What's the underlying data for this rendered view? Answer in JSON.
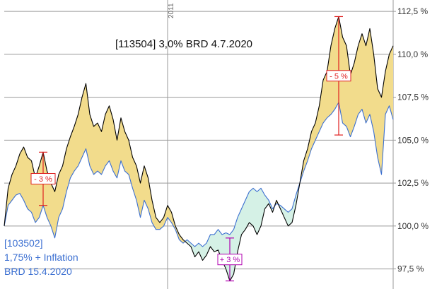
{
  "chart_data": {
    "type": "line",
    "title": "[113504] 3,0% BRD 4.7.2020",
    "legend_lines": [
      "[103502]",
      "1,75% + Inflation",
      "BRD 15.4.2020"
    ],
    "year_marker": "2011",
    "y_axis": {
      "ylim": [
        96.7,
        113.0
      ],
      "ticks": [
        97.5,
        100.0,
        102.5,
        105.0,
        107.5,
        110.0,
        112.5
      ],
      "tick_labels": [
        "97,5 %",
        "100,0 %",
        "102,5 %",
        "105,0 %",
        "107,5 %",
        "110,0 %",
        "112,5 %"
      ],
      "side": "right",
      "grid": true
    },
    "x_axis": {
      "index_range": [
        0,
        100
      ],
      "year_marker_at": 42,
      "tick_labels_visible": false
    },
    "colors": {
      "nominal": "#000000",
      "inflation": "#3b6fd1",
      "fill_nominal_above": "#f2dc8c",
      "fill_inflation_above": "#d5f1e6",
      "annotation_red": "#e02020",
      "annotation_magenta": "#b000b0",
      "grid": "#9a9a9a",
      "legend_text": "#3b6fd1"
    },
    "annotations": [
      {
        "label": "- 3 %",
        "x": 10,
        "y_top": 104.3,
        "y_bottom": 101.2,
        "color": "#e02020"
      },
      {
        "label": "+ 3 %",
        "x": 58,
        "y_top": 99.3,
        "y_bottom": 96.8,
        "color": "#b000b0"
      },
      {
        "label": "- 5 %",
        "x": 86,
        "y_top": 112.2,
        "y_bottom": 105.3,
        "color": "#e02020"
      }
    ],
    "series": [
      {
        "name": "[113504] 3,0% BRD 4.7.2020",
        "x": [
          0,
          1,
          2,
          3,
          4,
          5,
          6,
          7,
          8,
          9,
          10,
          11,
          12,
          13,
          14,
          15,
          16,
          17,
          18,
          19,
          20,
          21,
          22,
          23,
          24,
          25,
          26,
          27,
          28,
          29,
          30,
          31,
          32,
          33,
          34,
          35,
          36,
          37,
          38,
          39,
          40,
          41,
          42,
          43,
          44,
          45,
          46,
          47,
          48,
          49,
          50,
          51,
          52,
          53,
          54,
          55,
          56,
          57,
          58,
          59,
          60,
          61,
          62,
          63,
          64,
          65,
          66,
          67,
          68,
          69,
          70,
          71,
          72,
          73,
          74,
          75,
          76,
          77,
          78,
          79,
          80,
          81,
          82,
          83,
          84,
          85,
          86,
          87,
          88,
          89,
          90,
          91,
          92,
          93,
          94,
          95,
          96,
          97,
          98,
          99,
          100
        ],
        "values": [
          100.0,
          102.2,
          103.0,
          103.5,
          104.2,
          104.6,
          104.0,
          103.8,
          102.8,
          103.5,
          104.3,
          103.2,
          102.5,
          102.0,
          103.0,
          103.5,
          104.5,
          105.2,
          105.8,
          106.5,
          107.5,
          108.3,
          106.5,
          105.8,
          106.0,
          105.5,
          106.5,
          107.0,
          106.2,
          105.0,
          106.3,
          105.5,
          105.0,
          104.0,
          103.5,
          102.5,
          103.5,
          102.8,
          101.5,
          100.5,
          100.2,
          100.5,
          101.2,
          100.8,
          100.0,
          99.5,
          99.2,
          99.0,
          98.8,
          98.2,
          98.5,
          98.0,
          98.3,
          98.8,
          98.5,
          98.6,
          98.0,
          97.5,
          96.8,
          97.2,
          98.5,
          99.5,
          99.8,
          100.2,
          100.0,
          99.5,
          100.0,
          101.0,
          101.3,
          100.8,
          101.5,
          101.0,
          100.5,
          100.0,
          100.2,
          101.2,
          102.5,
          103.8,
          104.5,
          105.5,
          106.0,
          107.0,
          108.5,
          109.0,
          110.5,
          111.5,
          112.2,
          111.0,
          110.5,
          108.8,
          109.5,
          110.5,
          111.2,
          110.5,
          111.5,
          110.0,
          108.0,
          107.5,
          109.0,
          110.0,
          110.5
        ]
      },
      {
        "name": "[103502] 1,75% + Inflation BRD 15.4.2020",
        "x": [
          0,
          1,
          2,
          3,
          4,
          5,
          6,
          7,
          8,
          9,
          10,
          11,
          12,
          13,
          14,
          15,
          16,
          17,
          18,
          19,
          20,
          21,
          22,
          23,
          24,
          25,
          26,
          27,
          28,
          29,
          30,
          31,
          32,
          33,
          34,
          35,
          36,
          37,
          38,
          39,
          40,
          41,
          42,
          43,
          44,
          45,
          46,
          47,
          48,
          49,
          50,
          51,
          52,
          53,
          54,
          55,
          56,
          57,
          58,
          59,
          60,
          61,
          62,
          63,
          64,
          65,
          66,
          67,
          68,
          69,
          70,
          71,
          72,
          73,
          74,
          75,
          76,
          77,
          78,
          79,
          80,
          81,
          82,
          83,
          84,
          85,
          86,
          87,
          88,
          89,
          90,
          91,
          92,
          93,
          94,
          95,
          96,
          97,
          98,
          99,
          100
        ],
        "values": [
          100.0,
          101.2,
          101.5,
          101.8,
          101.9,
          101.5,
          101.0,
          100.8,
          100.2,
          100.5,
          101.2,
          100.5,
          100.0,
          99.3,
          100.5,
          101.0,
          102.0,
          102.8,
          103.2,
          103.5,
          104.0,
          104.5,
          103.5,
          103.0,
          103.2,
          103.0,
          103.5,
          103.8,
          103.2,
          102.8,
          103.8,
          103.2,
          103.0,
          102.2,
          101.5,
          100.5,
          101.5,
          101.0,
          100.2,
          99.8,
          99.8,
          100.0,
          100.5,
          100.2,
          99.8,
          99.2,
          99.0,
          99.2,
          99.0,
          98.8,
          99.0,
          98.8,
          99.0,
          99.5,
          99.5,
          99.8,
          99.5,
          99.6,
          99.5,
          99.8,
          100.5,
          101.0,
          101.5,
          102.0,
          102.2,
          102.0,
          102.2,
          101.8,
          101.5,
          101.0,
          101.3,
          101.2,
          101.0,
          100.8,
          101.0,
          101.8,
          102.5,
          103.2,
          103.8,
          104.5,
          105.0,
          105.5,
          106.0,
          106.3,
          106.5,
          106.8,
          107.2,
          106.0,
          105.8,
          105.2,
          105.8,
          106.5,
          106.8,
          106.0,
          106.5,
          105.5,
          104.0,
          103.0,
          106.5,
          107.0,
          106.2
        ]
      }
    ]
  }
}
